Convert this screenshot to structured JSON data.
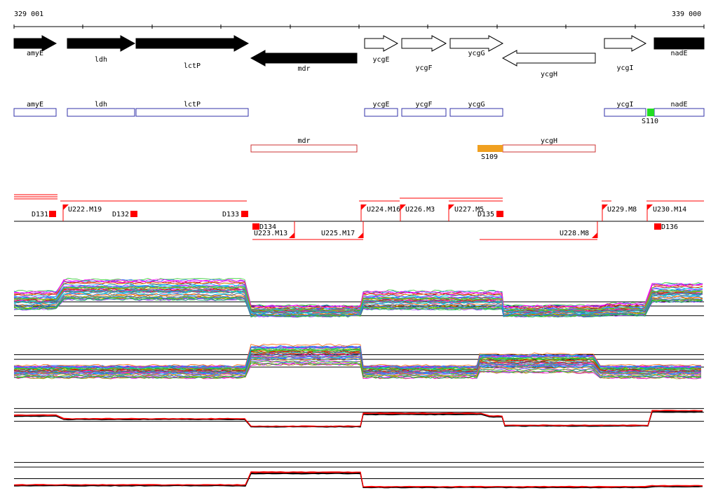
{
  "coords": {
    "start": "329 001",
    "end": "339 000"
  },
  "genes": [
    {
      "label": "amyE",
      "filled": true,
      "dir": 1
    },
    {
      "label": "ldh",
      "filled": true,
      "dir": 1
    },
    {
      "label": "lctP",
      "filled": true,
      "dir": 1
    },
    {
      "label": "mdr",
      "filled": true,
      "dir": -1
    },
    {
      "label": "ycgE",
      "filled": false,
      "dir": 1
    },
    {
      "label": "ycgF",
      "filled": false,
      "dir": 1
    },
    {
      "label": "ycgG",
      "filled": false,
      "dir": 1
    },
    {
      "label": "ycgH",
      "filled": false,
      "dir": -1
    },
    {
      "label": "ycgI",
      "filled": false,
      "dir": 1
    },
    {
      "label": "nadE",
      "filled": true,
      "dir": 1
    }
  ],
  "features_plus": [
    {
      "label": "amyE"
    },
    {
      "label": "ldh"
    },
    {
      "label": "lctP"
    },
    {
      "label": "ycgE"
    },
    {
      "label": "ycgF"
    },
    {
      "label": "ycgG"
    },
    {
      "label": "ycgI"
    },
    {
      "label": "nadE"
    }
  ],
  "features_minus": [
    {
      "label": "mdr"
    },
    {
      "label": "ycgH"
    }
  ],
  "special_features": [
    {
      "label": "S110",
      "color": "#22dd22"
    },
    {
      "label": "S109",
      "color": "#f0a020"
    }
  ],
  "transcripts_plus": [
    "U222.M19",
    "U224.M16",
    "U226.M3",
    "U227.M5",
    "U229.M8",
    "U230.M14"
  ],
  "transcripts_minus": [
    "U223.M13",
    "U225.M17",
    "U228.M8"
  ],
  "downshifts": [
    "D131",
    "D132",
    "D133",
    "D134",
    "D135",
    "D136"
  ],
  "colors": {
    "gene": "#000000",
    "feature_plus": "#3333aa",
    "feature_minus": "#cc3333",
    "marker": "#ff0000",
    "highlight_red": "#ff0000"
  }
}
